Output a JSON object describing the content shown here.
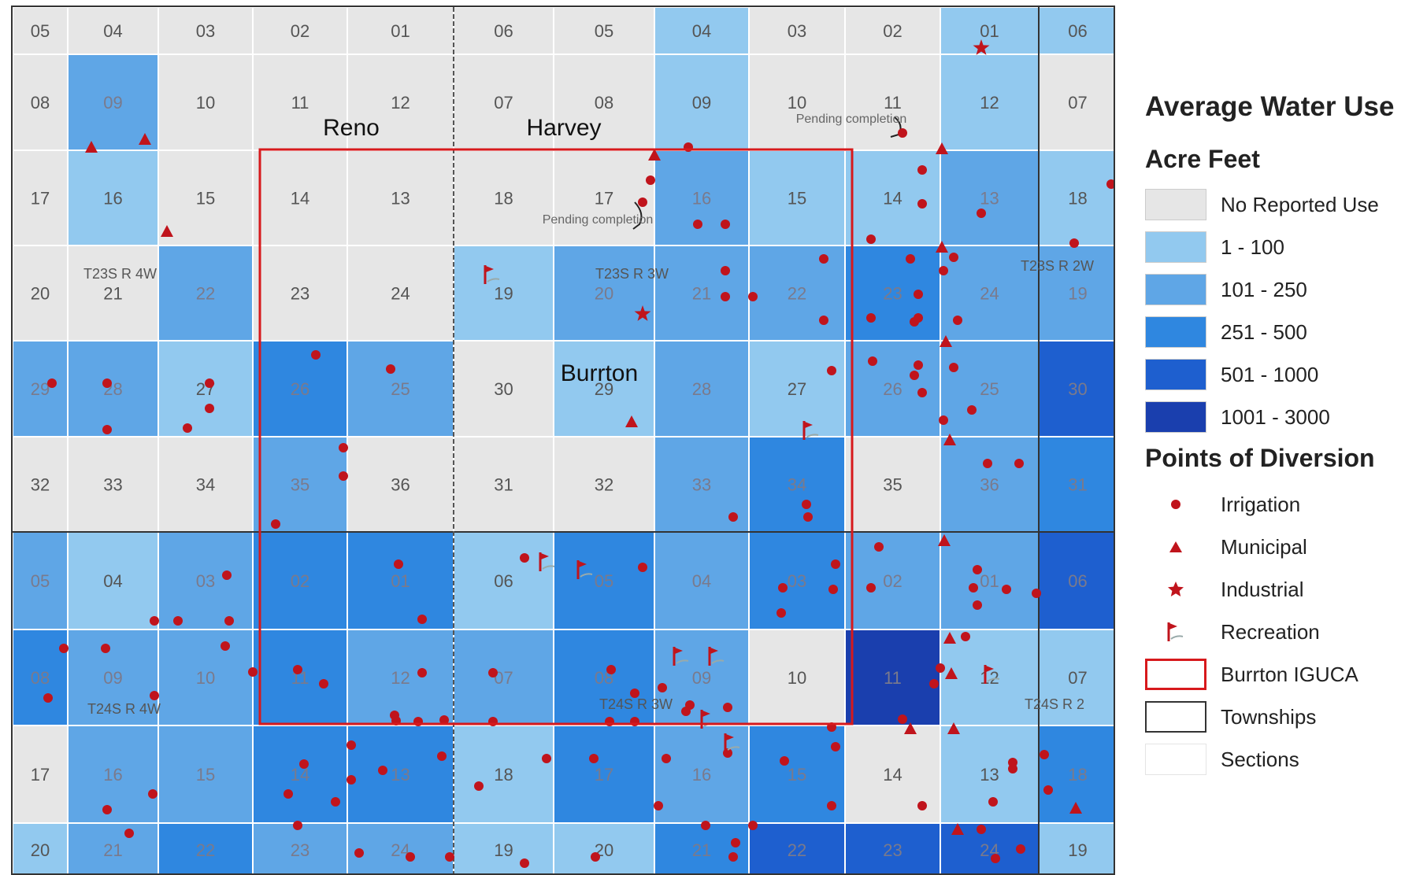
{
  "colors": {
    "no_use": "#e6e6e6",
    "c1": "#92c9ef",
    "c2": "#5fa6e6",
    "c3": "#2f87e0",
    "c4": "#1e5fcf",
    "c5": "#1a3fae",
    "point": "#c0141c",
    "iguca": "#d7191c"
  },
  "map": {
    "town_labels": [
      "Reno",
      "Harvey",
      "Burrton"
    ],
    "notes": [
      "Pending completion",
      "Pending completion"
    ],
    "township_labels": [
      "T23S  R 4W",
      "T23S  R 3W",
      "T23S  R 2W",
      "T24S  R 4W",
      "T24S  R 3W",
      "T24S  R 2"
    ],
    "rows": [
      {
        "labels": [
          "05",
          "04",
          "03",
          "02",
          "01",
          "06",
          "05",
          "04",
          "03",
          "02",
          "01",
          "06"
        ],
        "classes": [
          0,
          0,
          0,
          0,
          0,
          0,
          0,
          1,
          0,
          0,
          1,
          1
        ]
      },
      {
        "labels": [
          "08",
          "09",
          "10",
          "11",
          "12",
          "07",
          "08",
          "09",
          "10",
          "11",
          "12",
          "07"
        ],
        "classes": [
          0,
          2,
          0,
          0,
          0,
          0,
          0,
          1,
          0,
          0,
          1,
          0
        ]
      },
      {
        "labels": [
          "17",
          "16",
          "15",
          "14",
          "13",
          "18",
          "17",
          "16",
          "15",
          "14",
          "13",
          "18"
        ],
        "classes": [
          0,
          1,
          0,
          0,
          0,
          0,
          0,
          2,
          1,
          1,
          2,
          1
        ]
      },
      {
        "labels": [
          "20",
          "21",
          "22",
          "23",
          "24",
          "19",
          "20",
          "21",
          "22",
          "23",
          "24",
          "19"
        ],
        "classes": [
          0,
          0,
          2,
          0,
          0,
          1,
          2,
          2,
          2,
          3,
          2,
          2
        ]
      },
      {
        "labels": [
          "29",
          "28",
          "27",
          "26",
          "25",
          "30",
          "29",
          "28",
          "27",
          "26",
          "25",
          "30"
        ],
        "classes": [
          2,
          2,
          1,
          3,
          2,
          0,
          1,
          2,
          1,
          2,
          2,
          4
        ]
      },
      {
        "labels": [
          "32",
          "33",
          "34",
          "35",
          "36",
          "31",
          "32",
          "33",
          "34",
          "35",
          "36",
          "31"
        ],
        "classes": [
          0,
          0,
          0,
          2,
          0,
          0,
          0,
          2,
          3,
          0,
          2,
          3
        ]
      },
      {
        "labels": [
          "05",
          "04",
          "03",
          "02",
          "01",
          "06",
          "05",
          "04",
          "03",
          "02",
          "01",
          "06"
        ],
        "classes": [
          2,
          1,
          2,
          3,
          3,
          1,
          3,
          2,
          3,
          2,
          2,
          4
        ]
      },
      {
        "labels": [
          "08",
          "09",
          "10",
          "11",
          "12",
          "07",
          "08",
          "09",
          "10",
          "11",
          "12",
          "07"
        ],
        "classes": [
          3,
          2,
          2,
          3,
          2,
          2,
          3,
          2,
          0,
          5,
          1,
          1
        ]
      },
      {
        "labels": [
          "17",
          "16",
          "15",
          "14",
          "13",
          "18",
          "17",
          "16",
          "15",
          "14",
          "13",
          "18"
        ],
        "classes": [
          0,
          2,
          2,
          3,
          3,
          1,
          3,
          2,
          3,
          0,
          1,
          3
        ]
      },
      {
        "labels": [
          "20",
          "21",
          "22",
          "23",
          "24",
          "19",
          "20",
          "21",
          "22",
          "23",
          "24",
          "19"
        ],
        "classes": [
          1,
          2,
          3,
          2,
          2,
          1,
          1,
          3,
          4,
          4,
          4,
          1
        ]
      }
    ],
    "irrigation_points": [
      [
        1130,
        160
      ],
      [
        1155,
        207
      ],
      [
        1155,
        250
      ],
      [
        1090,
        295
      ],
      [
        1140,
        320
      ],
      [
        1150,
        365
      ],
      [
        1182,
        335
      ],
      [
        1145,
        400
      ],
      [
        1150,
        455
      ],
      [
        1182,
        525
      ],
      [
        1238,
        580
      ],
      [
        1278,
        580
      ],
      [
        858,
        178
      ],
      [
        810,
        220
      ],
      [
        800,
        248
      ],
      [
        870,
        276
      ],
      [
        905,
        276
      ],
      [
        905,
        335
      ],
      [
        905,
        368
      ],
      [
        940,
        368
      ],
      [
        1030,
        320
      ],
      [
        1030,
        398
      ],
      [
        1040,
        462
      ],
      [
        1092,
        450
      ],
      [
        1145,
        468
      ],
      [
        1155,
        490
      ],
      [
        1195,
        458
      ],
      [
        1218,
        512
      ],
      [
        1090,
        395
      ],
      [
        1150,
        395
      ],
      [
        1200,
        398
      ],
      [
        1195,
        318
      ],
      [
        1230,
        262
      ],
      [
        1348,
        300
      ],
      [
        1395,
        225
      ],
      [
        1405,
        360
      ],
      [
        385,
        442
      ],
      [
        480,
        460
      ],
      [
        420,
        560
      ],
      [
        420,
        596
      ],
      [
        334,
        657
      ],
      [
        250,
        478
      ],
      [
        250,
        510
      ],
      [
        120,
        478
      ],
      [
        120,
        537
      ],
      [
        50,
        478
      ],
      [
        222,
        535
      ],
      [
        915,
        648
      ],
      [
        1008,
        632
      ],
      [
        1010,
        648
      ],
      [
        650,
        700
      ],
      [
        800,
        712
      ],
      [
        1045,
        708
      ],
      [
        1042,
        740
      ],
      [
        1090,
        738
      ],
      [
        1100,
        686
      ],
      [
        1220,
        738
      ],
      [
        1225,
        760
      ],
      [
        978,
        738
      ],
      [
        976,
        770
      ],
      [
        272,
        722
      ],
      [
        180,
        780
      ],
      [
        210,
        780
      ],
      [
        275,
        780
      ],
      [
        118,
        815
      ],
      [
        65,
        815
      ],
      [
        270,
        812
      ],
      [
        305,
        845
      ],
      [
        180,
        875
      ],
      [
        45,
        878
      ],
      [
        362,
        842
      ],
      [
        395,
        860
      ],
      [
        490,
        708
      ],
      [
        520,
        778
      ],
      [
        520,
        846
      ],
      [
        487,
        907
      ],
      [
        485,
        900
      ],
      [
        515,
        908
      ],
      [
        548,
        906
      ],
      [
        610,
        846
      ],
      [
        610,
        908
      ],
      [
        545,
        952
      ],
      [
        592,
        990
      ],
      [
        678,
        955
      ],
      [
        738,
        955
      ],
      [
        830,
        955
      ],
      [
        760,
        842
      ],
      [
        790,
        872
      ],
      [
        790,
        908
      ],
      [
        758,
        908
      ],
      [
        860,
        887
      ],
      [
        825,
        865
      ],
      [
        855,
        895
      ],
      [
        908,
        890
      ],
      [
        908,
        948
      ],
      [
        880,
        1040
      ],
      [
        918,
        1062
      ],
      [
        915,
        1080
      ],
      [
        980,
        958
      ],
      [
        1040,
        915
      ],
      [
        1045,
        940
      ],
      [
        1170,
        860
      ],
      [
        1130,
        905
      ],
      [
        1155,
        1015
      ],
      [
        1178,
        840
      ],
      [
        1210,
        800
      ],
      [
        1225,
        715
      ],
      [
        1262,
        740
      ],
      [
        1270,
        968
      ],
      [
        1230,
        1045
      ],
      [
        1248,
        1082
      ],
      [
        1300,
        745
      ],
      [
        1280,
        1070
      ],
      [
        1245,
        1010
      ],
      [
        178,
        1000
      ],
      [
        120,
        1020
      ],
      [
        148,
        1050
      ],
      [
        350,
        1000
      ],
      [
        362,
        1040
      ],
      [
        410,
        1010
      ],
      [
        430,
        982
      ],
      [
        370,
        962
      ],
      [
        430,
        938
      ],
      [
        470,
        970
      ],
      [
        440,
        1075
      ],
      [
        505,
        1080
      ],
      [
        555,
        1080
      ],
      [
        650,
        1088
      ],
      [
        740,
        1080
      ],
      [
        820,
        1015
      ],
      [
        940,
        1040
      ],
      [
        1040,
        1015
      ],
      [
        1270,
        960
      ],
      [
        1310,
        950
      ],
      [
        1315,
        995
      ]
    ],
    "municipal_points": [
      [
        100,
        178
      ],
      [
        168,
        168
      ],
      [
        196,
        285
      ],
      [
        815,
        188
      ],
      [
        1180,
        180
      ],
      [
        1180,
        305
      ],
      [
        1185,
        425
      ],
      [
        1190,
        550
      ],
      [
        1183,
        678
      ],
      [
        786,
        527
      ],
      [
        1190,
        802
      ],
      [
        1192,
        847
      ],
      [
        1140,
        917
      ],
      [
        1195,
        917
      ],
      [
        1200,
        1045
      ],
      [
        1350,
        1018
      ]
    ],
    "industrial_points": [
      [
        1230,
        52
      ],
      [
        800,
        390
      ]
    ],
    "recreation_points": [
      [
        600,
        340
      ],
      [
        1005,
        538
      ],
      [
        670,
        705
      ],
      [
        718,
        715
      ],
      [
        840,
        825
      ],
      [
        885,
        825
      ],
      [
        875,
        905
      ],
      [
        905,
        935
      ],
      [
        1235,
        848
      ]
    ]
  },
  "legend": {
    "title": "Average Water Use",
    "subtitle": "Acre Feet",
    "classes": [
      "No Reported Use",
      "1 - 100",
      "101 - 250",
      "251 - 500",
      "501 - 1000",
      "1001 - 3000"
    ],
    "points_title": "Points of Diversion",
    "points": [
      {
        "label": "Irrigation",
        "icon": "circle-icon"
      },
      {
        "label": "Municipal",
        "icon": "triangle-icon"
      },
      {
        "label": "Industrial",
        "icon": "star-icon"
      },
      {
        "label": "Recreation",
        "icon": "flag-icon"
      }
    ],
    "boundaries": [
      {
        "label": "Burrton IGUCA",
        "icon": "red-outline"
      },
      {
        "label": "Townships",
        "icon": "black-outline"
      },
      {
        "label": "Sections",
        "icon": "white-fill"
      }
    ]
  }
}
